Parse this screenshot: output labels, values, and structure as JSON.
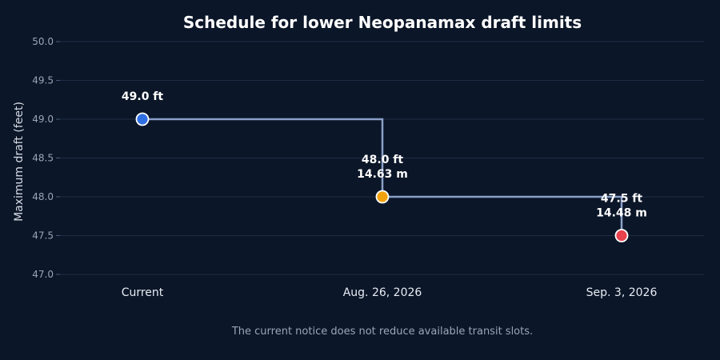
{
  "chart_data": {
    "type": "line",
    "line_shape": "step-after",
    "title": "Schedule for lower Neopanamax draft limits",
    "xlabel": "",
    "ylabel": "Maximum draft (feet)",
    "categories": [
      "Current",
      "Aug. 26, 2026",
      "Sep. 3, 2026"
    ],
    "series": [
      {
        "values": [
          49.0,
          48.0,
          47.5
        ],
        "point_labels": [
          [
            "49.0 ft"
          ],
          [
            "48.0 ft",
            "14.63 m"
          ],
          [
            "47.5 ft",
            "14.48 m"
          ]
        ],
        "point_colors": [
          "#2f6fe4",
          "#f2a20c",
          "#e8404c"
        ]
      }
    ],
    "ylim": [
      47.0,
      50.0
    ],
    "yticks": [
      "47.0",
      "47.5",
      "48.0",
      "48.5",
      "49.0",
      "49.5",
      "50.0"
    ],
    "grid": true,
    "legend": "none",
    "footnote": "The current notice does not reduce available transit slots."
  },
  "colors": {
    "background": "#0b1628",
    "gridline": "#1e2c44",
    "line": "#8aa0c8",
    "marker_outline": "#ffffff"
  }
}
